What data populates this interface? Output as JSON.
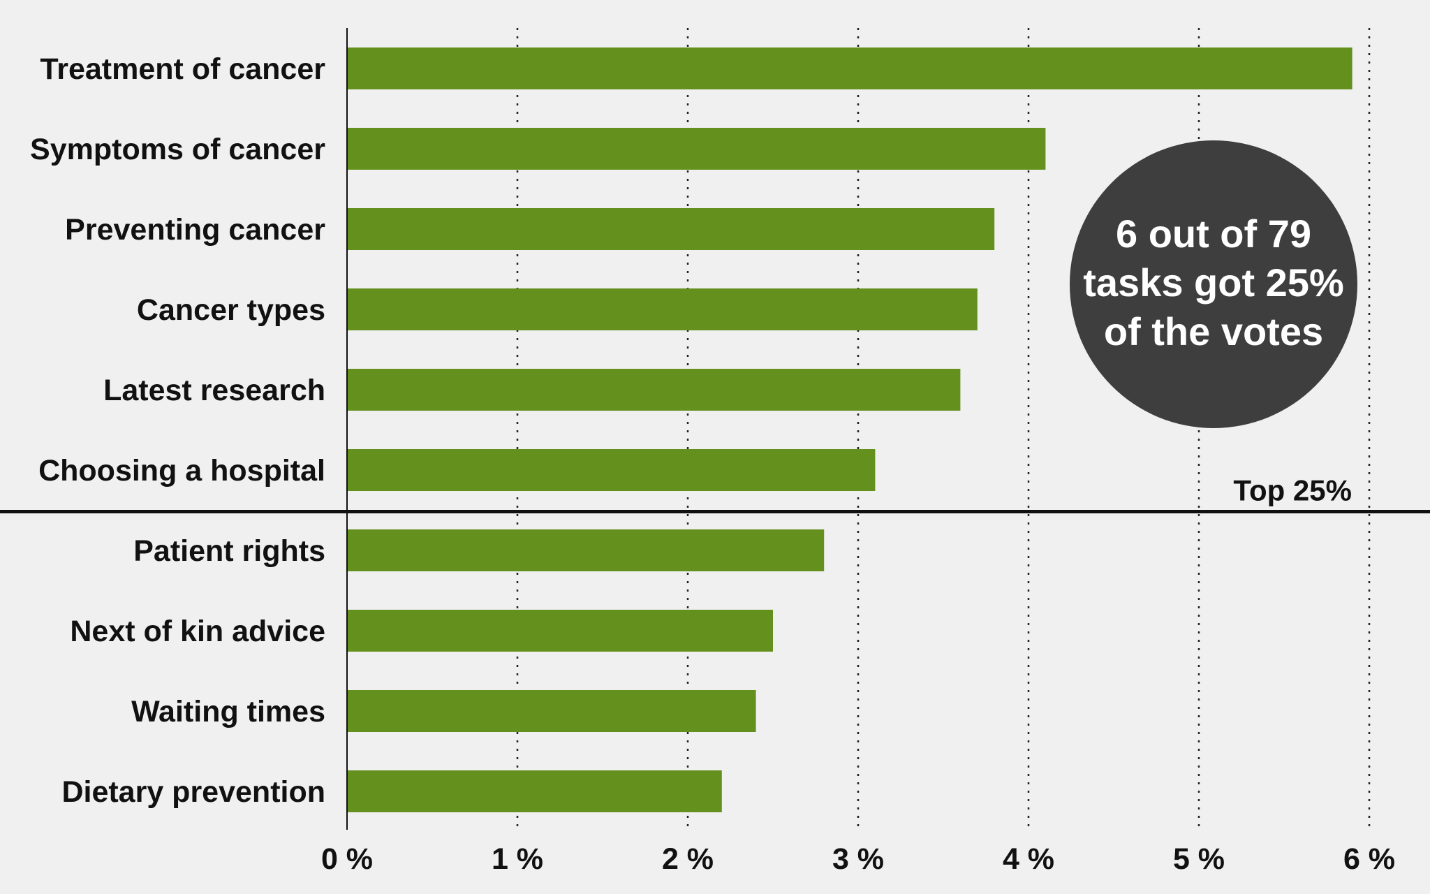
{
  "chart_data": {
    "type": "bar",
    "orientation": "horizontal",
    "categories": [
      "Treatment of cancer",
      "Symptoms of cancer",
      "Preventing cancer",
      "Cancer types",
      "Latest research",
      "Choosing a hospital",
      "Patient rights",
      "Next of kin advice",
      "Waiting times",
      "Dietary prevention"
    ],
    "values": [
      5.9,
      4.1,
      3.8,
      3.7,
      3.6,
      3.1,
      2.8,
      2.5,
      2.4,
      2.2
    ],
    "xlim": [
      0,
      6
    ],
    "ticks": [
      0,
      1,
      2,
      3,
      4,
      5,
      6
    ],
    "tick_labels": [
      "0 %",
      "1 %",
      "2 %",
      "3 %",
      "4 %",
      "5 %",
      "6 %"
    ],
    "grid": "vertical dotted",
    "threshold": {
      "label": "Top 25%",
      "after_category_index": 5
    },
    "title": "",
    "xlabel": "",
    "ylabel": ""
  },
  "callout": {
    "text": "6 out of 79 tasks got 25% of the votes"
  },
  "colors": {
    "bar": "#64911e",
    "background": "#f1f0f1",
    "callout_bg": "#3e3e3f",
    "callout_text": "#ffffff",
    "text": "#111111",
    "grid": "#222222"
  }
}
